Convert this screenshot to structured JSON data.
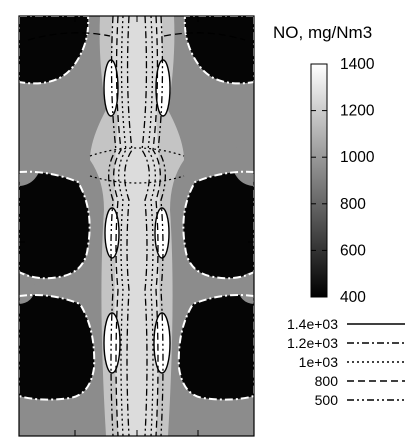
{
  "chart_data": {
    "type": "heatmap",
    "title": "",
    "xlabel": "",
    "ylabel": "",
    "colorbar": {
      "title": "NO, mg/Nm3",
      "range": [
        400,
        1400
      ],
      "ticks": [
        400,
        600,
        800,
        1000,
        1200,
        1400
      ],
      "colormap": "grayscale (black = low, white = high)"
    },
    "contour_levels": [
      {
        "label": "1.4e+03",
        "value": 1400,
        "style": "solid"
      },
      {
        "label": "1.2e+03",
        "value": 1200,
        "style": "dash-dot"
      },
      {
        "label": "1e+03",
        "value": 1000,
        "style": "dotted"
      },
      {
        "label": "800",
        "value": 800,
        "style": "dashed"
      },
      {
        "label": "500",
        "value": 500,
        "style": "dash-dot-dot"
      }
    ],
    "grid": false
  },
  "colors": {
    "high": "#ffffff",
    "low": "#000000",
    "background_field": "#8a8a8a",
    "outer_contour": "#ffffff"
  }
}
